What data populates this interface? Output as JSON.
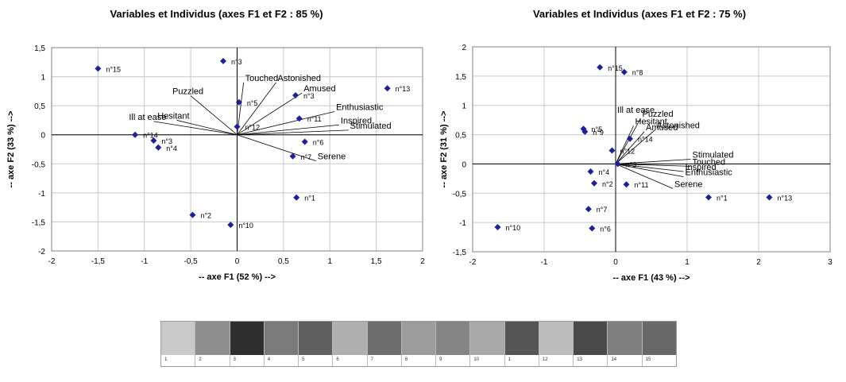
{
  "panels": [
    {
      "title": "Variables et Individus (axes F1 et F2 : 85 %)"
    },
    {
      "title": "Variables et Individus (axes F1 et F2 : 75 %)"
    }
  ],
  "chart_data": [
    {
      "type": "scatter",
      "title": "Variables et Individus (axes F1 et F2 : 85 %)",
      "xlabel": "-- axe F1 (52 %) -->",
      "ylabel": "-- axe F2 (33 %) -->",
      "xlim": [
        -2,
        2
      ],
      "ylim": [
        -2,
        1.5
      ],
      "xticks": [
        -2,
        -1.5,
        -1,
        -0.5,
        0,
        0.5,
        1,
        1.5,
        2
      ],
      "xtick_labels": [
        "-2",
        "-1,5",
        "-1",
        "-0,5",
        "0",
        "0,5",
        "1",
        "1,5",
        "2"
      ],
      "yticks": [
        -2,
        -1.5,
        -1,
        -0.5,
        0,
        0.5,
        1,
        1.5
      ],
      "ytick_labels": [
        "-2",
        "-1,5",
        "-1",
        "-0,5",
        "0",
        "0,5",
        "1",
        "1,5"
      ],
      "marker_color": "#1f1f9e",
      "points": [
        {
          "label": "n°15",
          "x": -1.5,
          "y": 1.14
        },
        {
          "label": "n°3",
          "x": -0.15,
          "y": 1.27
        },
        {
          "label": "n°13",
          "x": 1.62,
          "y": 0.8
        },
        {
          "label": "n°5",
          "x": 0.02,
          "y": 0.56
        },
        {
          "label": "n°3",
          "x": 0.63,
          "y": 0.68
        },
        {
          "label": "n°11",
          "x": 0.67,
          "y": 0.28
        },
        {
          "label": "n°12",
          "x": 0.0,
          "y": 0.14
        },
        {
          "label": "n°14",
          "x": -1.1,
          "y": 0.0
        },
        {
          "label": "n°3",
          "x": -0.9,
          "y": -0.1
        },
        {
          "label": "n°4",
          "x": -0.85,
          "y": -0.22
        },
        {
          "label": "n°6",
          "x": 0.73,
          "y": -0.12
        },
        {
          "label": "n°7",
          "x": 0.6,
          "y": -0.37
        },
        {
          "label": "n°1",
          "x": 0.64,
          "y": -1.08
        },
        {
          "label": "n°2",
          "x": -0.48,
          "y": -1.38
        },
        {
          "label": "n°10",
          "x": -0.07,
          "y": -1.55
        }
      ],
      "vectors": [
        {
          "label": "Touched",
          "x": 0.07,
          "y": 0.9
        },
        {
          "label": "Astonished",
          "x": 0.42,
          "y": 0.9
        },
        {
          "label": "Puzzled",
          "x": -0.5,
          "y": 0.67
        },
        {
          "label": "Amused",
          "x": 0.7,
          "y": 0.72
        },
        {
          "label": "Enthusiastic",
          "x": 1.05,
          "y": 0.4
        },
        {
          "label": "Inspired",
          "x": 1.1,
          "y": 0.17
        },
        {
          "label": "Stimulated",
          "x": 1.2,
          "y": 0.08
        },
        {
          "label": "Hesitant",
          "x": -0.65,
          "y": 0.25
        },
        {
          "label": "Ill at ease",
          "x": -0.9,
          "y": 0.23
        },
        {
          "label": "Serene",
          "x": 0.85,
          "y": -0.45
        }
      ]
    },
    {
      "type": "scatter",
      "title": "Variables et Individus (axes F1 et F2 : 75 %)",
      "xlabel": "-- axe F1 (43 %) -->",
      "ylabel": "-- axe F2 (31 %) -->",
      "xlim": [
        -2,
        3
      ],
      "ylim": [
        -1.5,
        2
      ],
      "xticks": [
        -2,
        -1,
        0,
        1,
        2,
        3
      ],
      "xtick_labels": [
        "-2",
        "-1",
        "0",
        "1",
        "2",
        "3"
      ],
      "yticks": [
        -1.5,
        -1,
        -0.5,
        0,
        0.5,
        1,
        1.5,
        2
      ],
      "ytick_labels": [
        "-1,5",
        "-1",
        "-0,5",
        "0",
        "0,5",
        "1",
        "1,5",
        "2"
      ],
      "marker_color": "#1f1f9e",
      "points": [
        {
          "label": "n°15",
          "x": -0.22,
          "y": 1.65
        },
        {
          "label": "n°8",
          "x": 0.12,
          "y": 1.57
        },
        {
          "label": "n°5",
          "x": -0.45,
          "y": 0.6
        },
        {
          "label": "n°9",
          "x": -0.43,
          "y": 0.55
        },
        {
          "label": "n°14",
          "x": 0.2,
          "y": 0.43
        },
        {
          "label": "n°12",
          "x": -0.05,
          "y": 0.23
        },
        {
          "label": "n°3",
          "x": 0.03,
          "y": 0.0
        },
        {
          "label": "n°4",
          "x": -0.35,
          "y": -0.13
        },
        {
          "label": "n°2",
          "x": -0.3,
          "y": -0.33
        },
        {
          "label": "n°11",
          "x": 0.15,
          "y": -0.35
        },
        {
          "label": "n°7",
          "x": -0.38,
          "y": -0.77
        },
        {
          "label": "n°6",
          "x": -0.33,
          "y": -1.1
        },
        {
          "label": "n°10",
          "x": -1.65,
          "y": -1.08
        },
        {
          "label": "n°1",
          "x": 1.3,
          "y": -0.57
        },
        {
          "label": "n°13",
          "x": 2.15,
          "y": -0.57
        }
      ],
      "vectors": [
        {
          "label": "Ill at ease",
          "x": 0.0,
          "y": 0.85
        },
        {
          "label": "Puzzled",
          "x": 0.35,
          "y": 0.78
        },
        {
          "label": "Hesitant",
          "x": 0.25,
          "y": 0.65
        },
        {
          "label": "Astonished",
          "x": 0.55,
          "y": 0.58
        },
        {
          "label": "Amused",
          "x": 0.4,
          "y": 0.55
        },
        {
          "label": "Stimulated",
          "x": 1.05,
          "y": 0.08
        },
        {
          "label": "Touched",
          "x": 1.05,
          "y": -0.04
        },
        {
          "label": "Inspired",
          "x": 0.95,
          "y": -0.13
        },
        {
          "label": "Enthusiastic",
          "x": 0.95,
          "y": -0.22
        },
        {
          "label": "Serene",
          "x": 0.8,
          "y": -0.42
        }
      ]
    }
  ],
  "filmstrip": {
    "frames": [
      "1",
      "2",
      "3",
      "4",
      "5",
      "6",
      "7",
      "8",
      "9",
      "10",
      "1",
      "12",
      "13",
      "14",
      "15"
    ],
    "shades": [
      "#c9c9c9",
      "#8e8e8e",
      "#2e2e2e",
      "#7a7a7a",
      "#5f5f5f",
      "#b0b0b0",
      "#6d6d6d",
      "#9c9c9c",
      "#858585",
      "#a8a8a8",
      "#555555",
      "#bcbcbc",
      "#4a4a4a",
      "#7f7f7f",
      "#686868"
    ]
  }
}
